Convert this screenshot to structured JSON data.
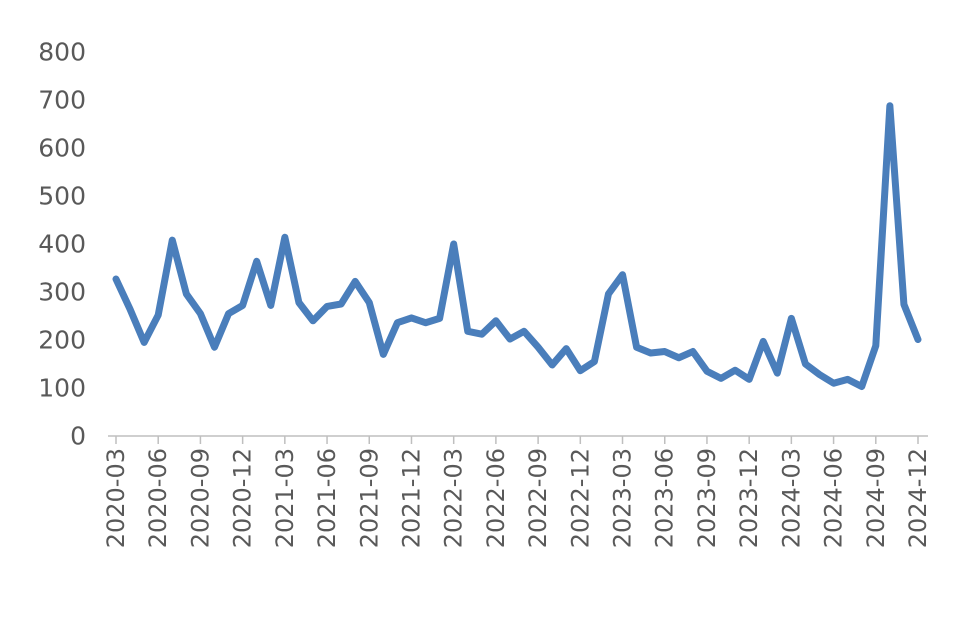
{
  "chart_data": {
    "type": "line",
    "title": "",
    "xlabel": "",
    "ylabel": "",
    "ylim": [
      0,
      800
    ],
    "yticks": [
      0,
      100,
      200,
      300,
      400,
      500,
      600,
      700,
      800
    ],
    "grid": false,
    "legend": "none",
    "xtick_labels": [
      "2020-03",
      "2020-06",
      "2020-09",
      "2020-12",
      "2021-03",
      "2021-06",
      "2021-09",
      "2021-12",
      "2022-03",
      "2022-06",
      "2022-09",
      "2022-12",
      "2023-03",
      "2023-06",
      "2023-09",
      "2023-12",
      "2024-03",
      "2024-06",
      "2024-09",
      "2024-12"
    ],
    "x": [
      "2020-03",
      "2020-04",
      "2020-05",
      "2020-06",
      "2020-07",
      "2020-08",
      "2020-09",
      "2020-10",
      "2020-11",
      "2020-12",
      "2021-01",
      "2021-02",
      "2021-03",
      "2021-04",
      "2021-05",
      "2021-06",
      "2021-07",
      "2021-08",
      "2021-09",
      "2021-10",
      "2021-11",
      "2021-12",
      "2022-01",
      "2022-02",
      "2022-03",
      "2022-04",
      "2022-05",
      "2022-06",
      "2022-07",
      "2022-08",
      "2022-09",
      "2022-10",
      "2022-11",
      "2022-12",
      "2023-01",
      "2023-02",
      "2023-03",
      "2023-04",
      "2023-05",
      "2023-06",
      "2023-07",
      "2023-08",
      "2023-09",
      "2023-10",
      "2023-11",
      "2023-12",
      "2024-01",
      "2024-02",
      "2024-03",
      "2024-04",
      "2024-05",
      "2024-06",
      "2024-07",
      "2024-08",
      "2024-09",
      "2024-10",
      "2024-11",
      "2024-12"
    ],
    "series": [
      {
        "color": "#4a7ebb",
        "values": [
          327,
          264,
          195,
          252,
          408,
          296,
          255,
          185,
          255,
          272,
          364,
          272,
          414,
          278,
          240,
          270,
          275,
          322,
          278,
          170,
          236,
          246,
          236,
          245,
          400,
          218,
          212,
          240,
          202,
          218,
          185,
          148,
          182,
          136,
          155,
          296,
          336,
          185,
          173,
          176,
          163,
          176,
          135,
          120,
          137,
          118,
          197,
          131,
          245,
          150,
          128,
          110,
          118,
          103,
          188,
          688,
          274,
          201
        ]
      }
    ]
  }
}
